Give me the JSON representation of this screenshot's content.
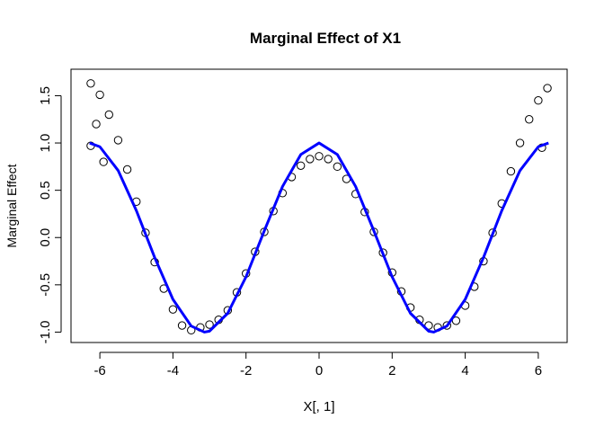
{
  "chart_data": {
    "type": "scatter",
    "title": "Marginal Effect of X1",
    "x_label": "X[, 1]",
    "y_label": "Marginal Effect",
    "xlim": [
      -6.79,
      6.79
    ],
    "ylim": [
      -1.11,
      1.78
    ],
    "xticks": [
      -6,
      -4,
      -2,
      0,
      2,
      4,
      6
    ],
    "yticks": [
      {
        "value": -1,
        "label": "-1.0"
      },
      -0.5,
      {
        "value": 0,
        "label": "0.0"
      },
      0.5,
      {
        "value": 1,
        "label": "1.0"
      },
      1.5
    ],
    "series": [
      {
        "style": "points",
        "color": "#000000",
        "x": [
          -6.25,
          -6.25,
          -6.1,
          -6.0,
          -5.9,
          -5.75,
          -5.5,
          -5.25,
          -5.0,
          -4.75,
          -4.5,
          -4.25,
          -4.0,
          -3.75,
          -3.5,
          -3.25,
          -3.0,
          -2.75,
          -2.5,
          -2.25,
          -2.0,
          -1.75,
          -1.5,
          -1.25,
          -1.0,
          -0.75,
          -0.5,
          -0.25,
          0,
          0.25,
          0.5,
          0.75,
          1.0,
          1.25,
          1.5,
          1.75,
          2.0,
          2.25,
          2.5,
          2.75,
          3.0,
          3.25,
          3.5,
          3.75,
          4.0,
          4.25,
          4.5,
          4.75,
          5.0,
          5.25,
          5.5,
          5.75,
          6.0,
          6.1,
          6.25
        ],
        "values": [
          1.63,
          0.97,
          1.2,
          1.51,
          0.8,
          1.3,
          1.03,
          0.72,
          0.38,
          0.05,
          -0.26,
          -0.54,
          -0.76,
          -0.93,
          -0.98,
          -0.95,
          -0.92,
          -0.87,
          -0.77,
          -0.58,
          -0.38,
          -0.15,
          0.06,
          0.28,
          0.47,
          0.64,
          0.76,
          0.83,
          0.86,
          0.83,
          0.75,
          0.62,
          0.46,
          0.27,
          0.06,
          -0.16,
          -0.37,
          -0.57,
          -0.74,
          -0.87,
          -0.93,
          -0.95,
          -0.93,
          -0.88,
          -0.72,
          -0.52,
          -0.25,
          0.05,
          0.36,
          0.7,
          1.0,
          1.25,
          1.45,
          0.95,
          1.58
        ]
      },
      {
        "style": "line",
        "color": "#0000ff",
        "x": [
          -6.28,
          -6,
          -5.5,
          -5,
          -4.5,
          -4,
          -3.5,
          -3.14,
          -3,
          -2.5,
          -2,
          -1.5,
          -1,
          -0.5,
          0,
          0.5,
          1,
          1.5,
          2,
          2.5,
          3,
          3.14,
          3.5,
          4,
          4.5,
          5,
          5.5,
          6,
          6.28
        ],
        "values": [
          1,
          0.96,
          0.709,
          0.284,
          -0.211,
          -0.654,
          -0.936,
          -1,
          -0.99,
          -0.801,
          -0.416,
          0.071,
          0.54,
          0.878,
          1,
          0.878,
          0.54,
          0.071,
          -0.416,
          -0.801,
          -0.99,
          -1,
          -0.936,
          -0.654,
          -0.211,
          0.284,
          0.709,
          0.96,
          1
        ]
      }
    ]
  }
}
